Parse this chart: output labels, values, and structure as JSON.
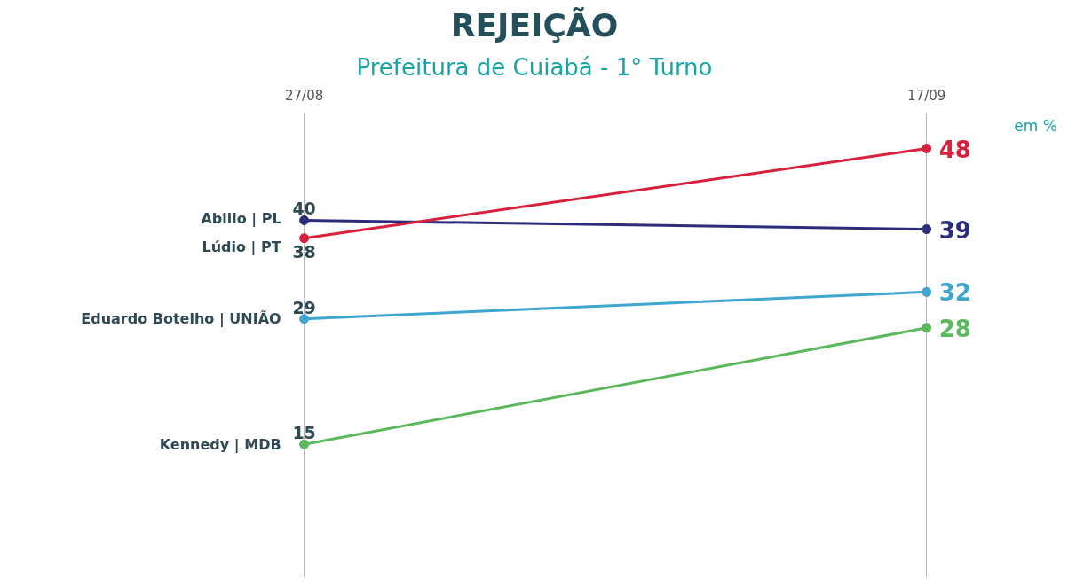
{
  "chart_data": {
    "type": "line",
    "title": "REJEIÇÃO",
    "subtitle": "Prefeitura de Cuiabá - 1° Turno",
    "annotations": [
      "em %"
    ],
    "categories": [
      "27/08",
      "17/09"
    ],
    "series": [
      {
        "name": "Abilio | PL",
        "color": "#2b2d7c",
        "values": [
          40,
          39
        ]
      },
      {
        "name": "Lúdio | PT",
        "color": "#d7203b",
        "values": [
          38,
          48
        ]
      },
      {
        "name": "Eduardo Botelho | UNIÃO",
        "color": "#3ea6cf",
        "values": [
          29,
          32
        ]
      },
      {
        "name": "Kennedy | MDB",
        "color": "#5cb85c",
        "values": [
          15,
          28
        ]
      }
    ],
    "marker": "circle",
    "data_labels": true,
    "grid": "x"
  }
}
